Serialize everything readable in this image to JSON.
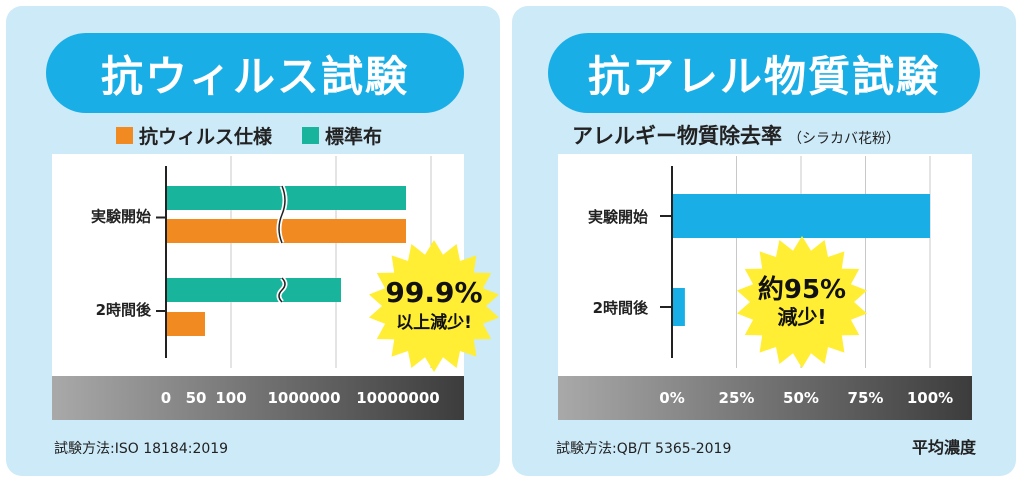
{
  "left": {
    "title": "抗ウィルス試験",
    "legend": [
      {
        "label": "抗ウィルス仕様",
        "color": "#f28a22"
      },
      {
        "label": "標準布",
        "color": "#18b59c"
      }
    ],
    "footnote": "試験方法:ISO 18184:2019",
    "badge": {
      "line1": "99.9%",
      "line2": "以上減少!",
      "color": "#ffee33"
    }
  },
  "right": {
    "title": "抗アレル物質試験",
    "subtitle": "アレルギー物質除去率",
    "subtitle_note": "（シラカバ花粉）",
    "footnote": "試験方法:QB/T 5365-2019",
    "bottom_label": "平均濃度",
    "badge": {
      "line1": "約95%",
      "line2": "減少!",
      "color": "#ffee33"
    }
  },
  "chart_data": [
    {
      "type": "bar",
      "orientation": "horizontal",
      "categories": [
        "実験開始",
        "2時間後"
      ],
      "series": [
        {
          "name": "標準布",
          "values": [
            10000000,
            1000000
          ],
          "color": "#18b59c"
        },
        {
          "name": "抗ウィルス仕様",
          "values": [
            10000000,
            60
          ],
          "color": "#f28a22"
        }
      ],
      "xticks": [
        "0",
        "50",
        "100",
        "1000000",
        "10000000"
      ],
      "axis_break": true,
      "grid": true
    },
    {
      "type": "bar",
      "orientation": "horizontal",
      "categories": [
        "実験開始",
        "2時間後"
      ],
      "series": [
        {
          "values": [
            100,
            5
          ],
          "color": "#19aee6"
        }
      ],
      "xticks": [
        "0%",
        "25%",
        "50%",
        "75%",
        "100%"
      ],
      "xlim": [
        0,
        100
      ],
      "grid": true
    }
  ]
}
